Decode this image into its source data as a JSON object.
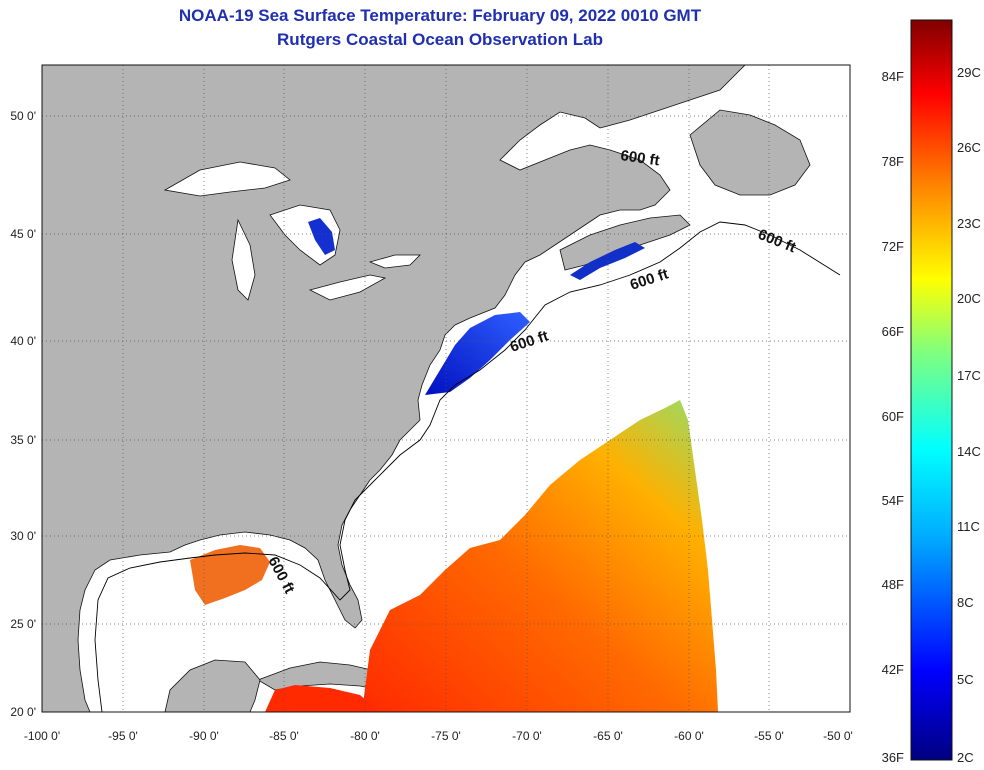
{
  "header": {
    "title_line1": "NOAA-19 Sea Surface Temperature:  February 09, 2022 0010 GMT",
    "title_line2": "Rutgers Coastal Ocean Observation Lab"
  },
  "axes": {
    "x_ticks": [
      "-100 0'",
      "-95 0'",
      "-90 0'",
      "-85 0'",
      "-80 0'",
      "-75 0'",
      "-70 0'",
      "-65 0'",
      "-60 0'",
      "-55 0'",
      "-50 0'"
    ],
    "y_ticks": [
      "20 0'",
      "25 0'",
      "30 0'",
      "35 0'",
      "40 0'",
      "45 0'",
      "50 0'"
    ]
  },
  "depth_labels": [
    "600 ft",
    "600 ft",
    "600 ft",
    "600 ft",
    "600 ft"
  ],
  "colorbar": {
    "fahrenheit": [
      "84F",
      "78F",
      "72F",
      "66F",
      "60F",
      "54F",
      "48F",
      "42F",
      "36F"
    ],
    "celsius": [
      "29C",
      "26C",
      "23C",
      "20C",
      "17C",
      "14C",
      "11C",
      "8C",
      "5C",
      "2C"
    ]
  },
  "colors": {
    "land": "#b4b4b4",
    "water": "#ffffff",
    "title": "#1f2fb0"
  }
}
